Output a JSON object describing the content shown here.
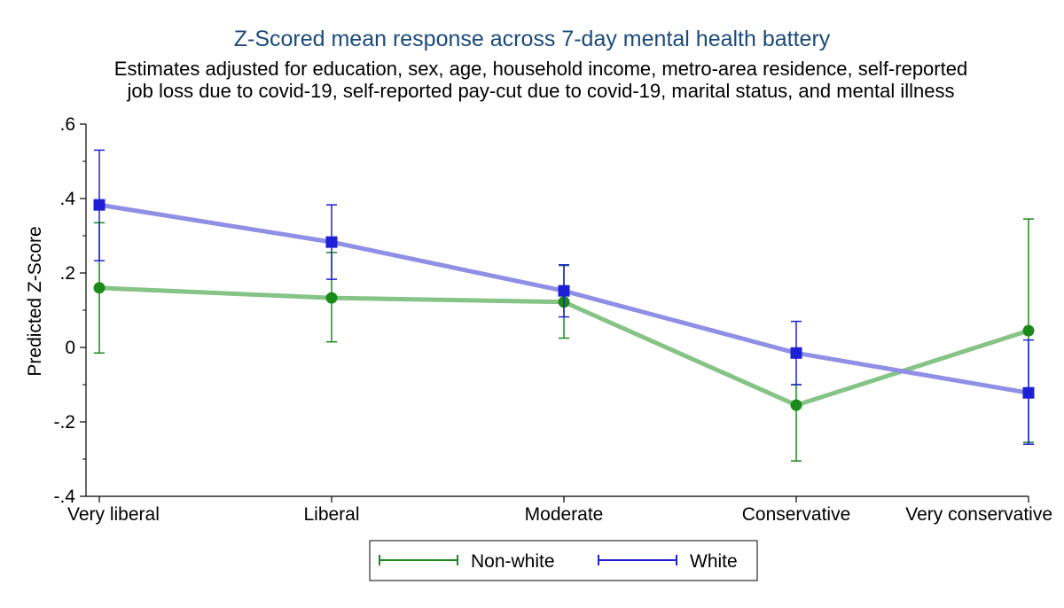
{
  "chart_data": {
    "type": "line",
    "title": "Z-Scored mean response across 7-day mental health battery",
    "subtitle_lines": [
      "Estimates adjusted for education, sex, age, household income, metro-area residence, self-reported",
      "job loss due to covid-19, self-reported pay-cut due to covid-19, marital status, and mental illness"
    ],
    "xlabel": "",
    "ylabel": "Predicted Z-Score",
    "categories": [
      "Very liberal",
      "Liberal",
      "Moderate",
      "Conservative",
      "Very conservative"
    ],
    "ylim": [
      -0.4,
      0.6
    ],
    "yticks": [
      -0.4,
      -0.2,
      0,
      0.2,
      0.4,
      0.6
    ],
    "ytick_labels": [
      "-.4",
      "-.2",
      "0",
      ".2",
      ".4",
      ".6"
    ],
    "series": [
      {
        "name": "Non-white",
        "color": "#1a8a1a",
        "line_color": "#86c386",
        "marker": "circle",
        "values": [
          0.16,
          0.133,
          0.122,
          -0.155,
          0.045
        ],
        "ci_low": [
          -0.015,
          0.015,
          0.025,
          -0.305,
          -0.255
        ],
        "ci_high": [
          0.335,
          0.255,
          0.22,
          -0.1,
          0.345
        ]
      },
      {
        "name": "White",
        "color": "#1f1fd6",
        "line_color": "#8f8fe6",
        "marker": "square",
        "values": [
          0.383,
          0.283,
          0.152,
          -0.015,
          -0.122
        ],
        "ci_low": [
          0.233,
          0.183,
          0.082,
          -0.1,
          -0.26
        ],
        "ci_high": [
          0.53,
          0.383,
          0.222,
          0.07,
          0.02
        ]
      }
    ],
    "legend": {
      "position": "bottom-center",
      "entries": [
        "Non-white",
        "White"
      ]
    }
  }
}
